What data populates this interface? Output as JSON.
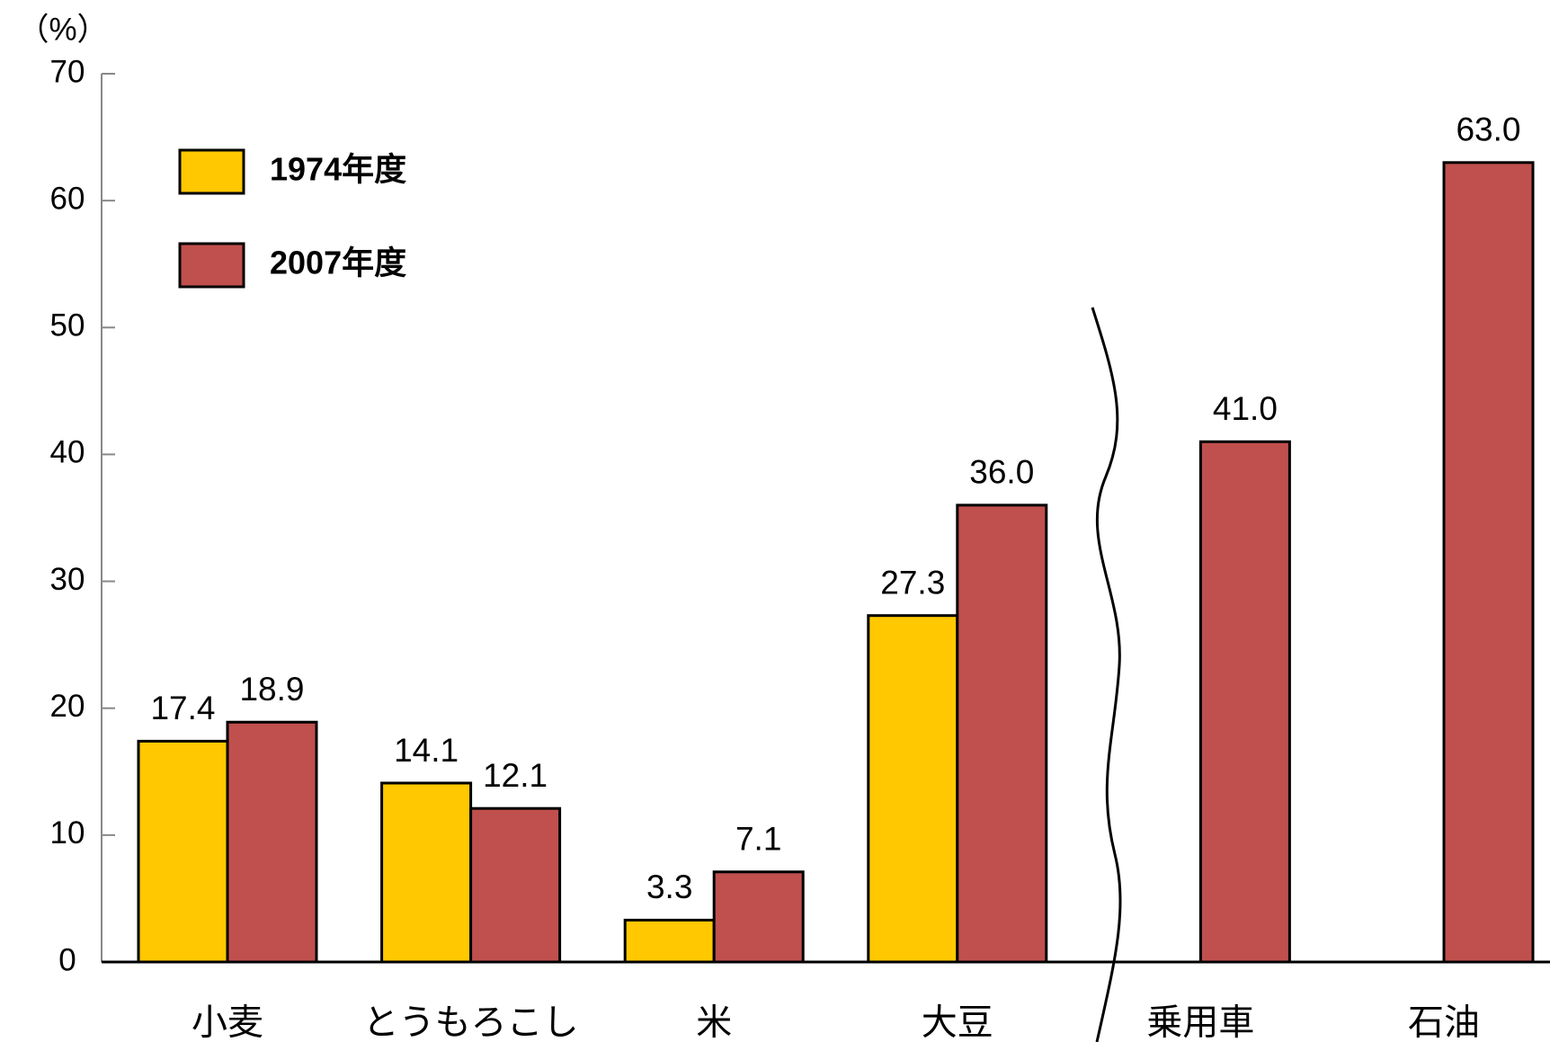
{
  "chart_data": {
    "type": "bar",
    "y_label": "（%）",
    "categories": [
      "小麦",
      "とうもろこし",
      "米",
      "大豆",
      "乗用車",
      "石油"
    ],
    "series": [
      {
        "name": "1974年度",
        "color": "#ffc800",
        "values": [
          17.4,
          14.1,
          3.3,
          27.3,
          null,
          null
        ]
      },
      {
        "name": "2007年度",
        "color": "#c0504d",
        "values": [
          18.9,
          12.1,
          7.1,
          36.0,
          41.0,
          63.0
        ],
        "value_labels": [
          "18.9",
          "12.1",
          "7.1",
          "36.0",
          "41.0",
          "63.0"
        ]
      }
    ],
    "ylim": [
      0,
      70
    ],
    "yticks": [
      0,
      10,
      20,
      30,
      40,
      50,
      60,
      70
    ],
    "grid": false
  }
}
